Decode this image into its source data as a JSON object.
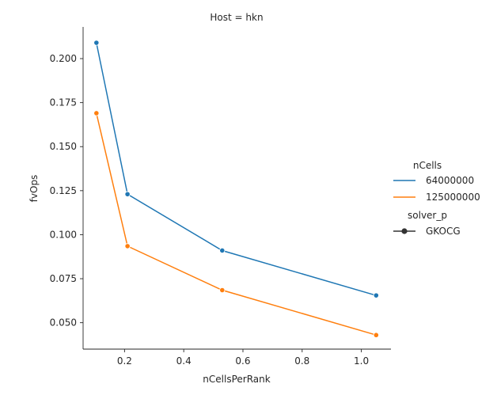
{
  "chart_data": {
    "type": "line",
    "title": "Host = hkn",
    "xlabel": "nCellsPerRank",
    "ylabel": "fvOps",
    "xlim": [
      0.06,
      1.1
    ],
    "ylim": [
      0.035,
      0.218
    ],
    "xticks": [
      0.2,
      0.4,
      0.6,
      0.8,
      1.0
    ],
    "xtick_labels": [
      "0.2",
      "0.4",
      "0.6",
      "0.8",
      "1.0"
    ],
    "yticks": [
      0.05,
      0.075,
      0.1,
      0.125,
      0.15,
      0.175,
      0.2
    ],
    "ytick_labels": [
      "0.050",
      "0.075",
      "0.100",
      "0.125",
      "0.150",
      "0.175",
      "0.200"
    ],
    "grid": false,
    "legend_position": "right",
    "series": [
      {
        "name": "64000000",
        "color": "#1f77b4",
        "x": [
          0.105,
          0.21,
          0.53,
          1.05
        ],
        "y": [
          0.209,
          0.123,
          0.091,
          0.0655
        ]
      },
      {
        "name": "125000000",
        "color": "#ff7f0e",
        "x": [
          0.105,
          0.21,
          0.53,
          1.05
        ],
        "y": [
          0.169,
          0.0935,
          0.0685,
          0.043
        ]
      }
    ],
    "legend": {
      "hue_title": "nCells",
      "hue_entries": [
        "64000000",
        "125000000"
      ],
      "style_title": "solver_p",
      "style_entries": [
        "GKOCG"
      ],
      "style_color": "#333333"
    }
  }
}
